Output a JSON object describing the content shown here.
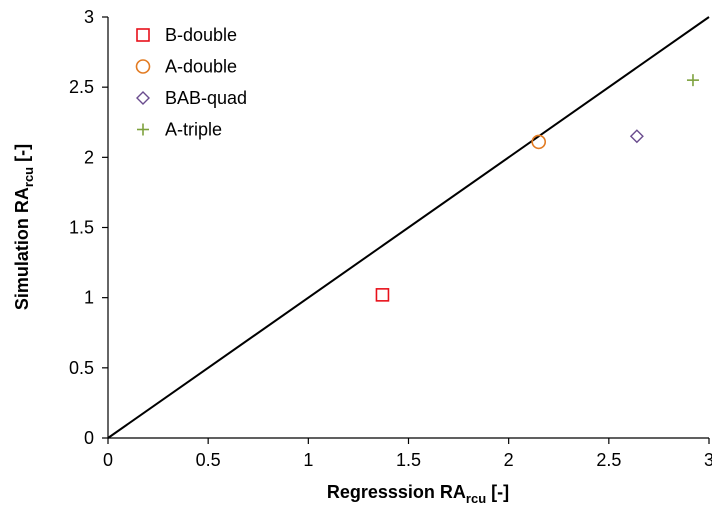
{
  "chart_data": {
    "type": "scatter",
    "xlabel": {
      "main": "Regresssion RA",
      "sub": "rcu",
      "unit": " [-]"
    },
    "ylabel": {
      "main": "Simulation RA",
      "sub": "rcu",
      "unit": " [-]"
    },
    "xlim": [
      0,
      3
    ],
    "ylim": [
      0,
      3
    ],
    "xticks": [
      "0",
      "0.5",
      "1",
      "1.5",
      "2",
      "2.5",
      "3"
    ],
    "yticks": [
      "0",
      "0.5",
      "1",
      "1.5",
      "2",
      "2.5",
      "3"
    ],
    "grid": false,
    "legend_position": "top-left",
    "series": [
      {
        "name": "B-double",
        "marker": "square",
        "color": "#e8101a",
        "points": [
          [
            1.37,
            1.02
          ]
        ]
      },
      {
        "name": "A-double",
        "marker": "circle",
        "color": "#e27b22",
        "points": [
          [
            2.15,
            2.11
          ]
        ]
      },
      {
        "name": "BAB-quad",
        "marker": "diamond",
        "color": "#6a4c8e",
        "points": [
          [
            2.64,
            2.15
          ]
        ]
      },
      {
        "name": "A-triple",
        "marker": "plus",
        "color": "#7ea23e",
        "points": [
          [
            2.92,
            2.55
          ]
        ]
      }
    ],
    "reference_line": {
      "from": [
        0,
        0
      ],
      "to": [
        3,
        3
      ],
      "color": "#000000"
    }
  }
}
